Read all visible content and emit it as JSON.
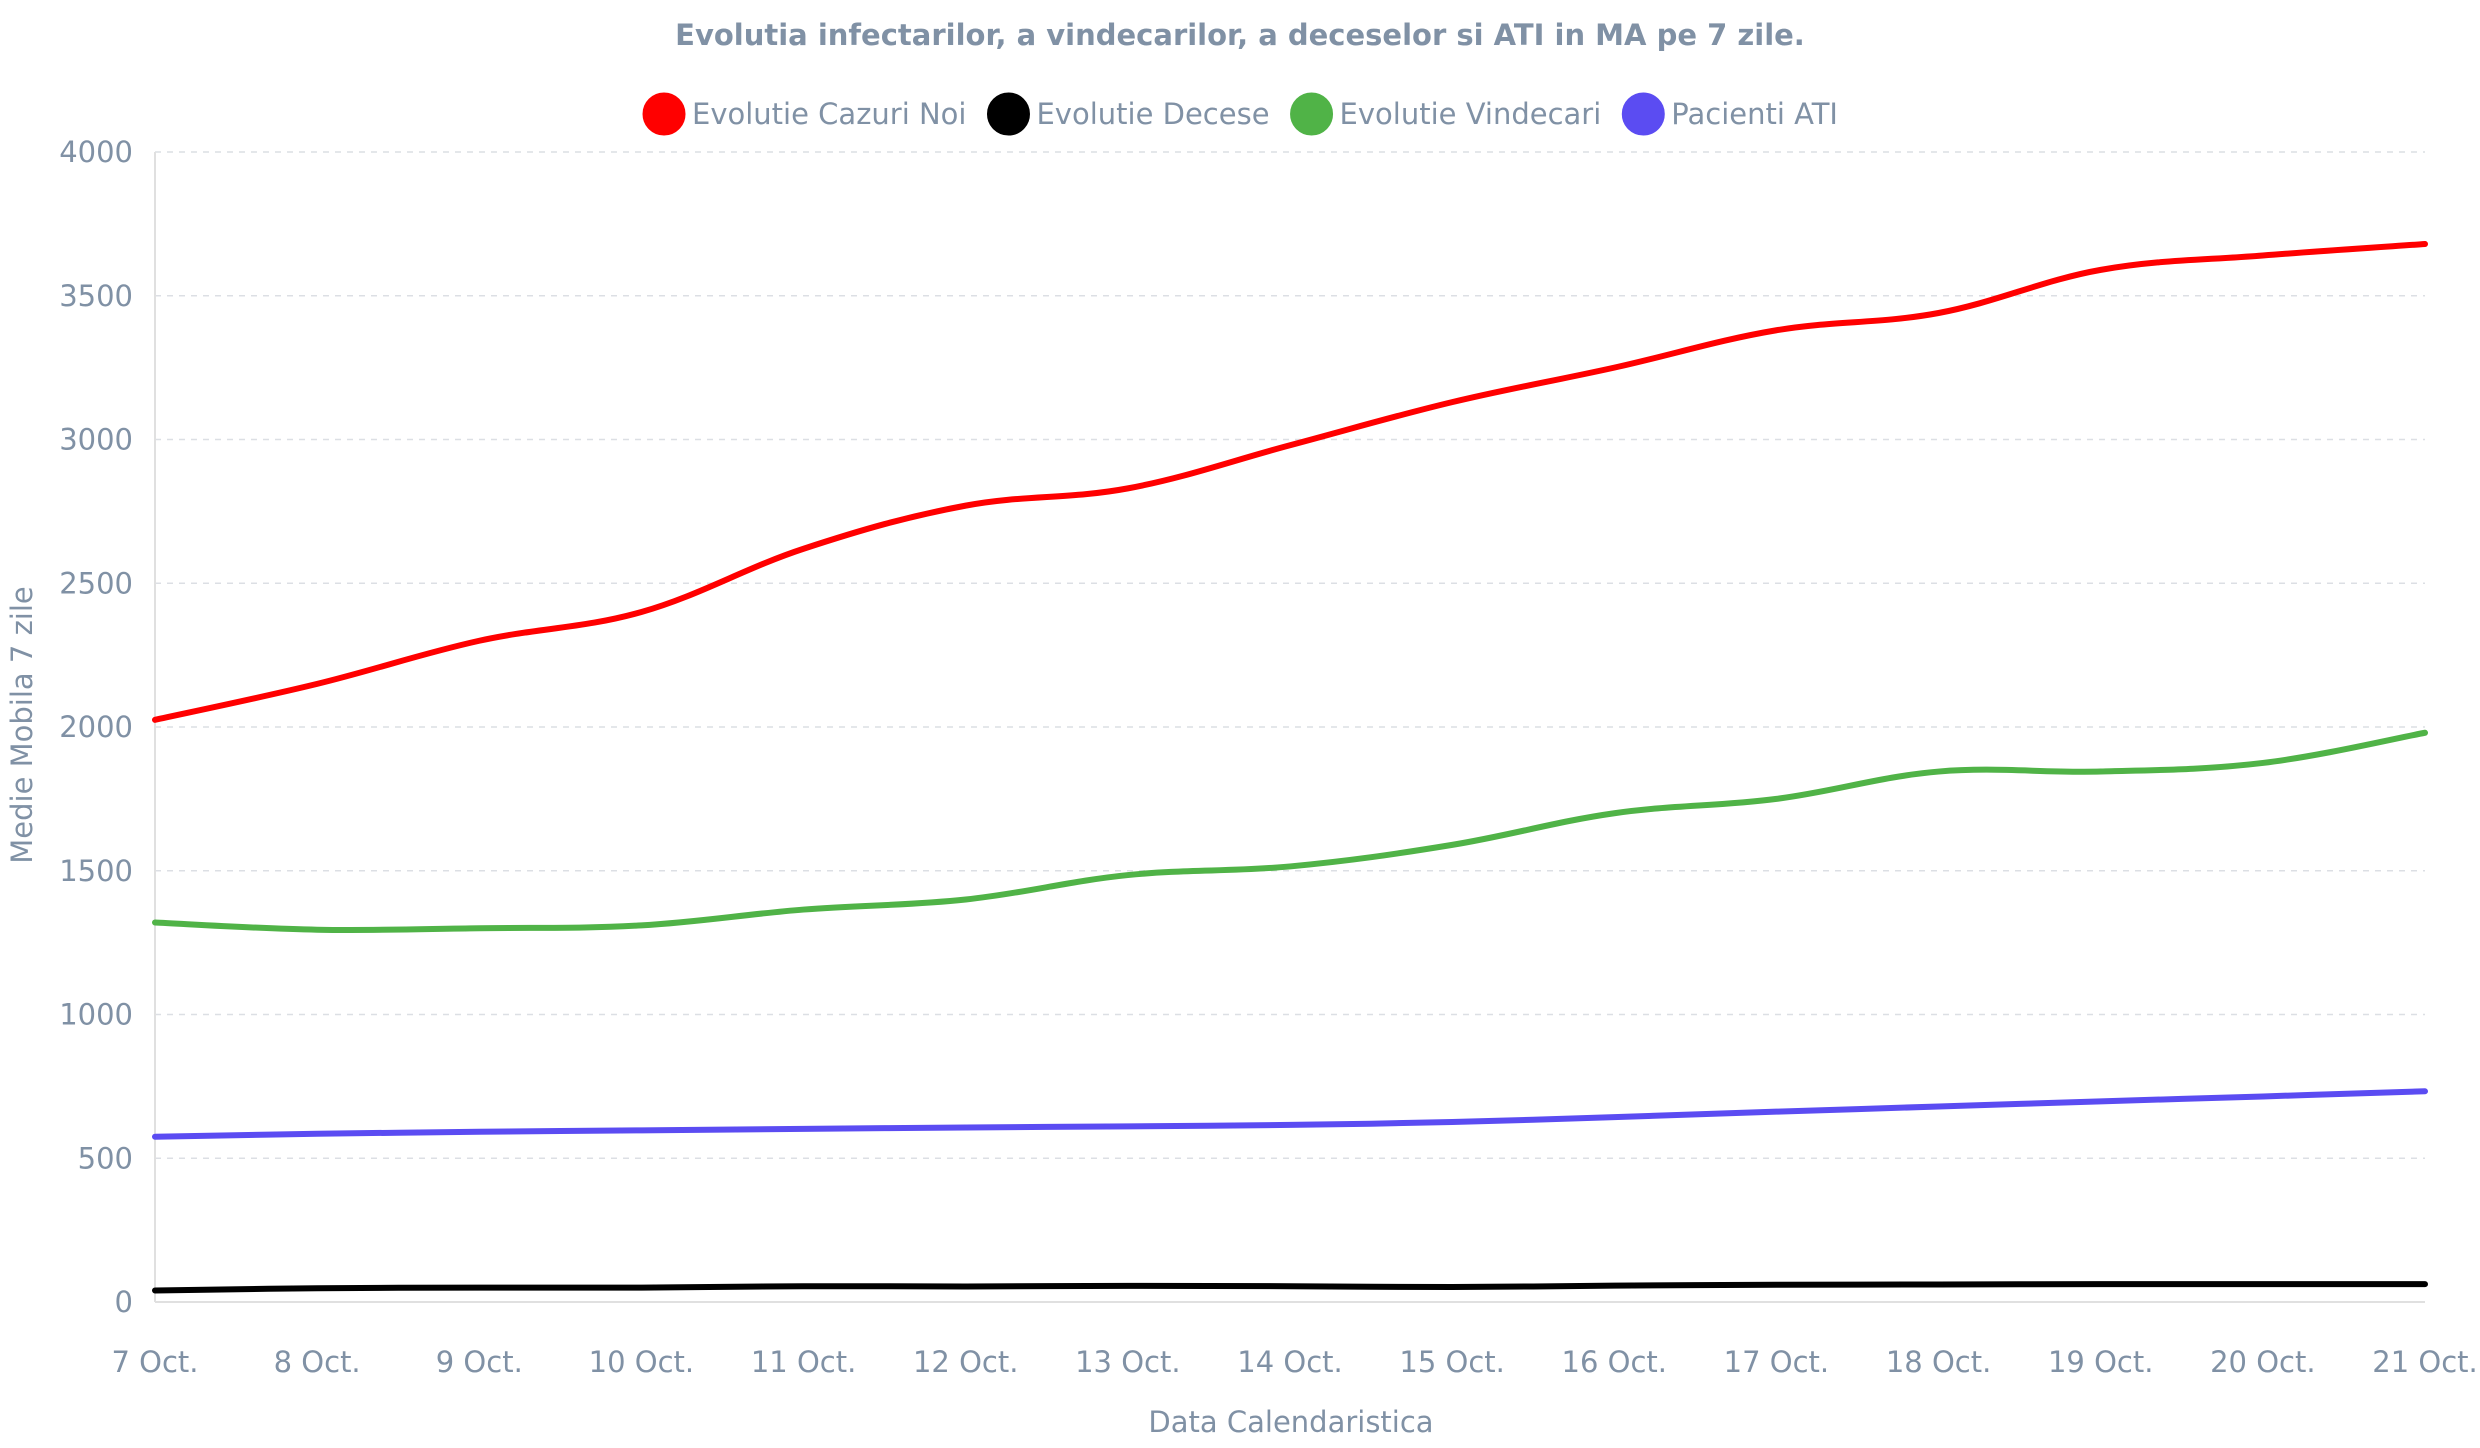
{
  "chart_data": {
    "type": "line",
    "title": "Evolutia infectarilor, a vindecarilor, a deceselor si ATI in MA pe 7 zile.",
    "xlabel": "Data Calendaristica",
    "ylabel": "Medie Mobila 7 zile",
    "ylim": [
      0,
      4000
    ],
    "yticks": [
      0,
      500,
      1000,
      1500,
      2000,
      2500,
      3000,
      3500,
      4000
    ],
    "grid": true,
    "legend_position": "top-center",
    "categories": [
      "7 Oct.",
      "8 Oct.",
      "9 Oct.",
      "10 Oct.",
      "11 Oct.",
      "12 Oct.",
      "13 Oct.",
      "14 Oct.",
      "15 Oct.",
      "16 Oct.",
      "17 Oct.",
      "18 Oct.",
      "19 Oct.",
      "20 Oct.",
      "21 Oct."
    ],
    "series": [
      {
        "name": "Evolutie Cazuri Noi",
        "color": "#ff0000",
        "values": [
          2025,
          2150,
          2300,
          2400,
          2620,
          2770,
          2830,
          2980,
          3130,
          3250,
          3380,
          3440,
          3590,
          3640,
          3680
        ]
      },
      {
        "name": "Evolutie Decese",
        "color": "#000000",
        "values": [
          40,
          48,
          50,
          50,
          55,
          54,
          56,
          55,
          52,
          57,
          60,
          61,
          62,
          62,
          62
        ]
      },
      {
        "name": "Evolutie Vindecari",
        "color": "#50b347",
        "values": [
          1320,
          1295,
          1300,
          1310,
          1365,
          1400,
          1485,
          1515,
          1590,
          1700,
          1750,
          1845,
          1845,
          1875,
          1980
        ]
      },
      {
        "name": "Pacienti ATI",
        "color": "#5b4cf2",
        "values": [
          575,
          585,
          592,
          597,
          602,
          607,
          611,
          616,
          626,
          643,
          662,
          680,
          698,
          715,
          733
        ]
      }
    ]
  }
}
